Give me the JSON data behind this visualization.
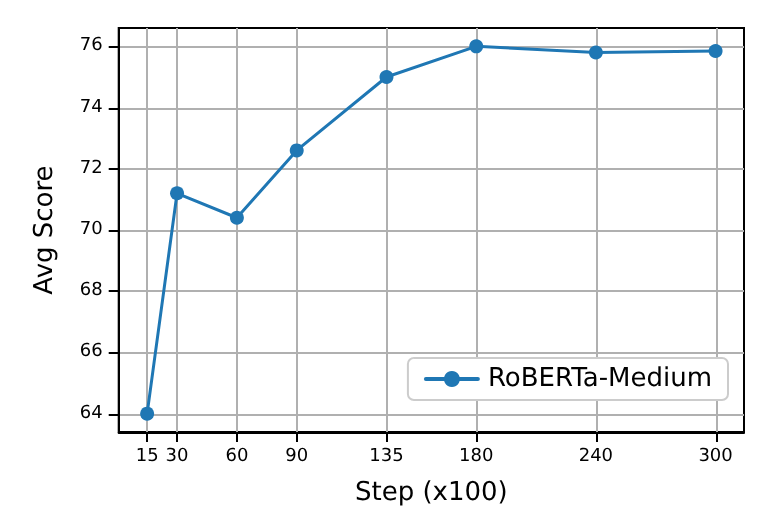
{
  "chart_data": {
    "type": "line",
    "xlabel": "Step (x100)",
    "ylabel": "Avg Score",
    "x": [
      15,
      30,
      60,
      90,
      135,
      180,
      240,
      300
    ],
    "series": [
      {
        "name": "RoBERTa-Medium",
        "color": "#1f77b4",
        "values": [
          64.0,
          71.2,
          70.4,
          72.6,
          75.0,
          76.0,
          75.8,
          75.85
        ]
      }
    ],
    "xlim": [
      0.75,
      314.25
    ],
    "xticks": [
      15,
      30,
      60,
      90,
      135,
      180,
      240,
      300
    ],
    "ylim": [
      63.4,
      76.6
    ],
    "yticks": [
      64,
      66,
      68,
      70,
      72,
      74,
      76
    ],
    "grid": true,
    "legend": "bottom right",
    "marker": "circle",
    "line_style": "solid"
  }
}
